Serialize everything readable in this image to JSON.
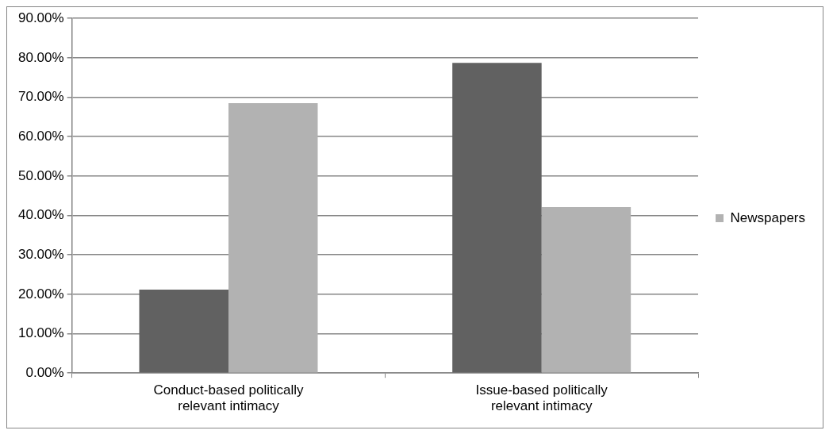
{
  "chart_data": {
    "type": "bar",
    "categories": [
      "Conduct-based politically relevant intimacy",
      "Issue-based politically relevant intimacy"
    ],
    "series": [
      {
        "color": "#616161",
        "values": [
          21.2,
          78.7
        ]
      },
      {
        "name": "Newspapers",
        "color": "#b2b2b2",
        "values": [
          68.5,
          42.1
        ]
      }
    ],
    "ylim": [
      0,
      90
    ],
    "yticks": [
      {
        "value": 0,
        "label": "0.00%"
      },
      {
        "value": 10,
        "label": "10.00%"
      },
      {
        "value": 20,
        "label": "20.00%"
      },
      {
        "value": 30,
        "label": "30.00%"
      },
      {
        "value": 40,
        "label": "40.00%"
      },
      {
        "value": 50,
        "label": "50.00%"
      },
      {
        "value": 60,
        "label": "60.00%"
      },
      {
        "value": 70,
        "label": "70.00%"
      },
      {
        "value": 80,
        "label": "80.00%"
      },
      {
        "value": 90,
        "label": "90.00%"
      }
    ],
    "grid": "y",
    "legend": "right"
  }
}
